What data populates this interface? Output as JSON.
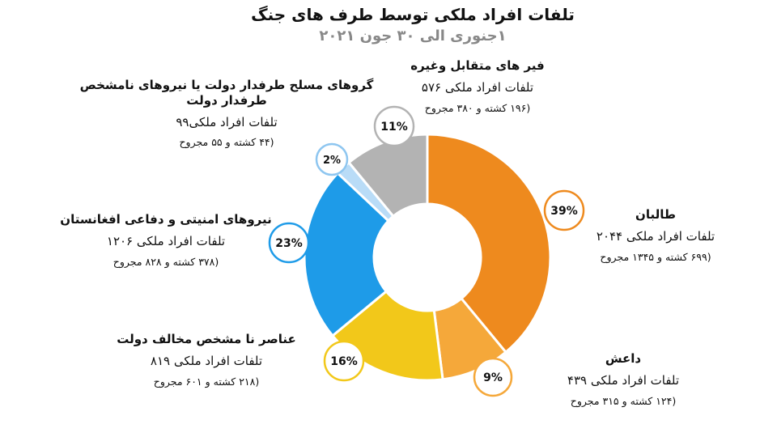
{
  "chart_data": {
    "type": "pie",
    "title": "تلفات افراد ملکی توسط طرف های جنگ",
    "subtitle": "۱جنوری الی ۳۰ جون ۲۰۲۱",
    "slices": [
      {
        "name": "طالبان",
        "percent_label": "39%",
        "value": 39,
        "total": "تلفات افراد ملکی ۲۰۴۴",
        "detail": "(۶۹۹ کشته و ۱۳۴۵ مجروح",
        "color": "#EE8A1E"
      },
      {
        "name": "داعش",
        "percent_label": "9%",
        "value": 9,
        "total": "تلفات افراد ملکی ۴۳۹",
        "detail": "(۱۲۴ کشته و ۳۱۵ مجروح",
        "color": "#F5A83A"
      },
      {
        "name": "عناصر نا مشخص مخالف دولت",
        "percent_label": "16%",
        "value": 16,
        "total": "تلفات افراد ملکی  ۸۱۹",
        "detail": "(۲۱۸ کشته و ۶۰۱ مجروح",
        "color": "#F2C81A"
      },
      {
        "name": "نیروهای امنیتی و دفاعی افغانستان",
        "percent_label": "23%",
        "value": 23,
        "total": "تلفات افراد ملکی  ۱۲۰۶",
        "detail": "(۳۷۸ کشته و ۸۲۸ مجروح",
        "color": "#1E9BE8"
      },
      {
        "name": "گروهای مسلح طرفدار دولت یا نیروهای نامشخص طرفدار دولت",
        "percent_label": "2%",
        "value": 2,
        "total": "تلفات افراد ملکی۹۹",
        "detail": "(۴۴ کشته و ۵۵ مجروح",
        "color": "#B9DCF7"
      },
      {
        "name": "فیر های متقابل وغیره",
        "percent_label": "11%",
        "value": 11,
        "total": "تلفات افراد ملکی ۵۷۶",
        "detail": "(۱۹۶ کشته و ۳۸۰ مجروح",
        "color": "#B3B3B3"
      }
    ]
  }
}
